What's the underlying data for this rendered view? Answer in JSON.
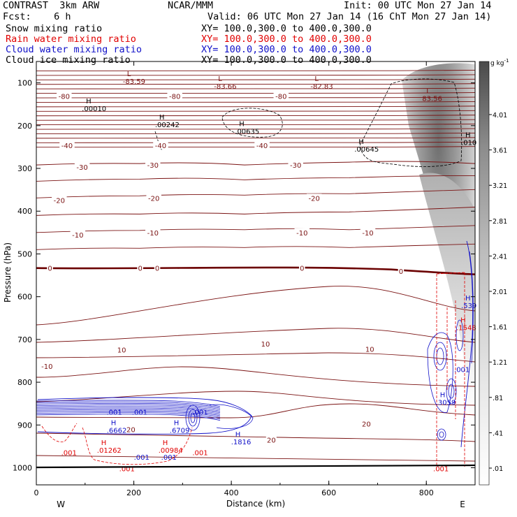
{
  "header": {
    "model": "CONTRAST  3km ARW",
    "center": "NCAR/MMM",
    "init": "Init: 00 UTC Mon 27 Jan 14",
    "fcst": "Fcst:    6 h",
    "valid": "Valid: 06 UTC Mon 27 Jan 14 (16 ChT Mon 27 Jan 14)",
    "fields": [
      {
        "name": "Snow mixing ratio",
        "xy": "XY= 100.0,300.0 to 400.0,300.0",
        "color": "#000000"
      },
      {
        "name": "Rain water mixing ratio",
        "xy": "XY= 100.0,300.0 to 400.0,300.0",
        "color": "#e00000"
      },
      {
        "name": "Cloud water mixing ratio",
        "xy": "XY= 100.0,300.0 to 400.0,300.0",
        "color": "#1010c8"
      },
      {
        "name": "Cloud ice mixing ratio",
        "xy": "XY= 100.0,300.0 to 400.0,300.0",
        "color": "#000000"
      }
    ]
  },
  "chart_data": {
    "type": "cross-section",
    "xlabel": "Distance (km)",
    "ylabel": "Pressure (hPa)",
    "xlim": [
      0,
      900
    ],
    "ylim": [
      1040,
      50
    ],
    "x_ticks": [
      "0",
      "200",
      "400",
      "600",
      "800"
    ],
    "y_ticks": [
      "100",
      "200",
      "300",
      "400",
      "500",
      "600",
      "700",
      "800",
      "900",
      "1000"
    ],
    "x_end_labels": [
      "W",
      "E"
    ],
    "colorbar": {
      "unit": "g kg",
      "unit_exp": "-1",
      "labels": [
        "4.01",
        "3.61",
        "3.21",
        "2.81",
        "2.41",
        "2.01",
        "1.61",
        "1.21",
        ".81",
        ".41",
        ".01"
      ]
    },
    "temperature_contours": {
      "color": "#7a1212",
      "zero_color": "#6b0000",
      "levels": [
        -80,
        -40,
        -30,
        -20,
        -10,
        0,
        10,
        20
      ],
      "labels": [
        {
          "text": "-80",
          "x": 57,
          "p": 131
        },
        {
          "text": "-80",
          "x": 284,
          "p": 131
        },
        {
          "text": "-80",
          "x": 502,
          "p": 131
        },
        {
          "text": "-40",
          "x": 63,
          "p": 246
        },
        {
          "text": "-40",
          "x": 255,
          "p": 246
        },
        {
          "text": "-40",
          "x": 463,
          "p": 246
        },
        {
          "text": "-30",
          "x": 94,
          "p": 297
        },
        {
          "text": "-30",
          "x": 239,
          "p": 292
        },
        {
          "text": "-30",
          "x": 532,
          "p": 292
        },
        {
          "text": "-20",
          "x": 47,
          "p": 374
        },
        {
          "text": "-20",
          "x": 241,
          "p": 369
        },
        {
          "text": "-20",
          "x": 570,
          "p": 369
        },
        {
          "text": "-10",
          "x": 85,
          "p": 455
        },
        {
          "text": "-10",
          "x": 239,
          "p": 450
        },
        {
          "text": "-10",
          "x": 545,
          "p": 450
        },
        {
          "text": "-10",
          "x": 680,
          "p": 450
        },
        {
          "text": "0",
          "x": 28,
          "p": 533
        },
        {
          "text": "0",
          "x": 213,
          "p": 533
        },
        {
          "text": "0",
          "x": 248,
          "p": 533
        },
        {
          "text": "0",
          "x": 545,
          "p": 533
        },
        {
          "text": "0",
          "x": 748,
          "p": 540
        },
        {
          "text": "10",
          "x": 175,
          "p": 724
        },
        {
          "text": "10",
          "x": 470,
          "p": 710
        },
        {
          "text": "10",
          "x": 684,
          "p": 722
        },
        {
          "text": "-10",
          "x": 22,
          "p": 762
        },
        {
          "text": "20",
          "x": 194,
          "p": 910
        },
        {
          "text": "20",
          "x": 482,
          "p": 935
        },
        {
          "text": "20",
          "x": 677,
          "p": 897
        }
      ]
    },
    "extrema": [
      {
        "type": "L",
        "value": "-83.59",
        "x": 186,
        "p": 84,
        "color": "#7a1212"
      },
      {
        "type": "L",
        "value": "-83.66",
        "x": 373,
        "p": 96,
        "color": "#7a1212"
      },
      {
        "type": "L",
        "value": "-82.83",
        "x": 571,
        "p": 96,
        "color": "#7a1212"
      },
      {
        "type": "L",
        "value": "83.56",
        "x": 800,
        "p": 124,
        "color": "#7a1212"
      },
      {
        "type": "H",
        "value": ".00010",
        "x": 102,
        "p": 148,
        "color": "#000000"
      },
      {
        "type": "H",
        "value": ".00242",
        "x": 252,
        "p": 186,
        "color": "#000000"
      },
      {
        "type": "H",
        "value": ".00635",
        "x": 416,
        "p": 201,
        "color": "#000000"
      },
      {
        "type": "H",
        "value": ".00645",
        "x": 661,
        "p": 243,
        "color": "#000000"
      },
      {
        "type": "H",
        "value": ".010",
        "x": 880,
        "p": 227,
        "color": "#000000"
      },
      {
        "type": "H",
        "value": ".539",
        "x": 880,
        "p": 609,
        "color": "#1010c8"
      },
      {
        "type": "H",
        "value": ".1548",
        "x": 870,
        "p": 660,
        "color": "#e00000"
      },
      {
        "type": "H",
        "value": ".3059",
        "x": 828,
        "p": 835,
        "color": "#1010c8"
      },
      {
        "type": "H",
        "value": ".6662",
        "x": 153,
        "p": 900,
        "color": "#1010c8"
      },
      {
        "type": "H",
        "value": ".6709",
        "x": 282,
        "p": 900,
        "color": "#1010c8"
      },
      {
        "type": "H",
        "value": ".1816",
        "x": 408,
        "p": 927,
        "color": "#1010c8"
      },
      {
        "type": "H",
        "value": ".01262",
        "x": 133,
        "p": 947,
        "color": "#e00000"
      },
      {
        "type": "H",
        "value": ".00984",
        "x": 259,
        "p": 947,
        "color": "#e00000"
      }
    ],
    "small_labels": [
      {
        "text": ".001",
        "x": 160,
        "p": 869,
        "color": "#1010c8"
      },
      {
        "type": "",
        "text": ".001",
        "x": 212,
        "p": 869,
        "color": "#1010c8"
      },
      {
        "text": ".001",
        "x": 336,
        "p": 869,
        "color": "#1010c8"
      },
      {
        "text": ".001",
        "x": 67,
        "p": 964,
        "color": "#e00000"
      },
      {
        "text": ".001",
        "x": 216,
        "p": 975,
        "color": "#1010c8"
      },
      {
        "text": ".001",
        "x": 272,
        "p": 975,
        "color": "#1010c8"
      },
      {
        "text": ".001",
        "x": 336,
        "p": 964,
        "color": "#e00000"
      },
      {
        "text": ".001",
        "x": 186,
        "p": 1002,
        "color": "#e00000"
      },
      {
        "text": ".001",
        "x": 830,
        "p": 1002,
        "color": "#e00000"
      },
      {
        "text": ".001",
        "x": 873,
        "p": 770,
        "color": "#1010c8"
      }
    ]
  }
}
